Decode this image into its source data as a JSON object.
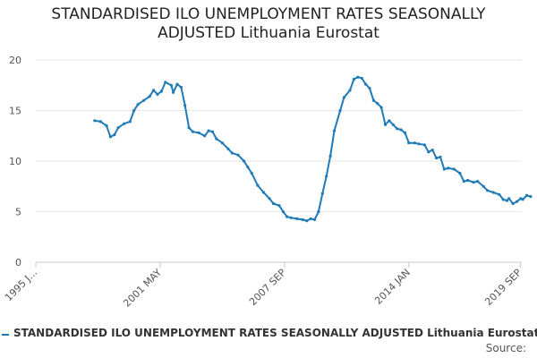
{
  "chart_data": {
    "type": "line",
    "title_line1": "STANDARDISED ILO UNEMPLOYMENT RATES SEASONALLY",
    "title_line2": "ADJUSTED Lithuania Eurostat",
    "xlabel": "",
    "ylabel": "",
    "ylim": [
      0,
      20
    ],
    "y_ticks": [
      0,
      5,
      10,
      15,
      20
    ],
    "y_tick_labels": [
      "0",
      "5",
      "10",
      "15",
      "20"
    ],
    "x_range": [
      1995.0,
      2019.75
    ],
    "x_ticks": [
      {
        "label": "1995 J...",
        "x": 1995.0
      },
      {
        "label": "2001 MAY",
        "x": 2001.33
      },
      {
        "label": "2007 SEP",
        "x": 2007.67
      },
      {
        "label": "2014 JAN",
        "x": 2014.0
      },
      {
        "label": "2019 SEP",
        "x": 2019.67
      }
    ],
    "grid": "horizontal",
    "legend_position": "bottom",
    "series": [
      {
        "name": "STANDARDISED ILO UNEMPLOYMENT RATES SEASONALLY ADJUSTED Lithuania Eurostat",
        "color": "#1f7ab8",
        "points": [
          [
            1998.0,
            14.0
          ],
          [
            1998.3,
            13.9
          ],
          [
            1998.6,
            13.5
          ],
          [
            1998.8,
            12.4
          ],
          [
            1999.0,
            12.6
          ],
          [
            1999.2,
            13.3
          ],
          [
            1999.5,
            13.7
          ],
          [
            1999.8,
            13.9
          ],
          [
            2000.0,
            15.0
          ],
          [
            2000.2,
            15.6
          ],
          [
            2000.5,
            16.0
          ],
          [
            2000.8,
            16.4
          ],
          [
            2001.0,
            17.0
          ],
          [
            2001.2,
            16.6
          ],
          [
            2001.4,
            16.9
          ],
          [
            2001.6,
            17.8
          ],
          [
            2001.9,
            17.5
          ],
          [
            2002.0,
            16.8
          ],
          [
            2002.2,
            17.6
          ],
          [
            2002.4,
            17.3
          ],
          [
            2002.6,
            15.5
          ],
          [
            2002.8,
            13.3
          ],
          [
            2003.0,
            12.9
          ],
          [
            2003.3,
            12.8
          ],
          [
            2003.6,
            12.5
          ],
          [
            2003.8,
            13.0
          ],
          [
            2004.0,
            12.9
          ],
          [
            2004.2,
            12.2
          ],
          [
            2004.5,
            11.8
          ],
          [
            2004.8,
            11.2
          ],
          [
            2005.0,
            10.8
          ],
          [
            2005.3,
            10.6
          ],
          [
            2005.6,
            10.0
          ],
          [
            2005.8,
            9.4
          ],
          [
            2006.0,
            8.8
          ],
          [
            2006.3,
            7.6
          ],
          [
            2006.6,
            6.9
          ],
          [
            2006.9,
            6.3
          ],
          [
            2007.1,
            5.8
          ],
          [
            2007.4,
            5.6
          ],
          [
            2007.6,
            5.0
          ],
          [
            2007.8,
            4.5
          ],
          [
            2008.0,
            4.4
          ],
          [
            2008.3,
            4.3
          ],
          [
            2008.6,
            4.2
          ],
          [
            2008.8,
            4.1
          ],
          [
            2009.0,
            4.3
          ],
          [
            2009.2,
            4.2
          ],
          [
            2009.4,
            5.0
          ],
          [
            2009.6,
            6.8
          ],
          [
            2009.8,
            8.5
          ],
          [
            2010.0,
            10.5
          ],
          [
            2010.2,
            13.0
          ],
          [
            2010.5,
            15.0
          ],
          [
            2010.7,
            16.3
          ],
          [
            2011.0,
            17.0
          ],
          [
            2011.2,
            18.1
          ],
          [
            2011.4,
            18.3
          ],
          [
            2011.6,
            18.2
          ],
          [
            2011.8,
            17.6
          ],
          [
            2012.0,
            17.2
          ],
          [
            2012.2,
            16.0
          ],
          [
            2012.4,
            15.7
          ],
          [
            2012.6,
            15.3
          ],
          [
            2012.8,
            13.6
          ],
          [
            2013.0,
            14.0
          ],
          [
            2013.2,
            13.6
          ],
          [
            2013.4,
            13.2
          ],
          [
            2013.6,
            13.1
          ],
          [
            2013.8,
            12.8
          ],
          [
            2014.0,
            11.8
          ],
          [
            2014.3,
            11.8
          ],
          [
            2014.5,
            11.7
          ],
          [
            2014.8,
            11.6
          ],
          [
            2015.0,
            10.9
          ],
          [
            2015.2,
            11.1
          ],
          [
            2015.4,
            10.3
          ],
          [
            2015.6,
            10.4
          ],
          [
            2015.8,
            9.2
          ],
          [
            2016.0,
            9.3
          ],
          [
            2016.3,
            9.2
          ],
          [
            2016.6,
            8.8
          ],
          [
            2016.8,
            8.0
          ],
          [
            2017.0,
            8.1
          ],
          [
            2017.3,
            7.9
          ],
          [
            2017.5,
            8.0
          ],
          [
            2017.8,
            7.5
          ],
          [
            2018.0,
            7.1
          ],
          [
            2018.3,
            6.9
          ],
          [
            2018.6,
            6.7
          ],
          [
            2018.8,
            6.2
          ],
          [
            2019.0,
            6.1
          ],
          [
            2019.1,
            6.3
          ],
          [
            2019.3,
            5.8
          ],
          [
            2019.5,
            6.0
          ],
          [
            2019.7,
            6.3
          ],
          [
            2019.8,
            6.2
          ],
          [
            2020.0,
            6.6
          ],
          [
            2020.2,
            6.5
          ]
        ]
      }
    ],
    "legend_label": "STANDARDISED ILO UNEMPLOYMENT RATES SEASONALLY ADJUSTED Lithuania Eurostat",
    "source_label": "Source:"
  }
}
